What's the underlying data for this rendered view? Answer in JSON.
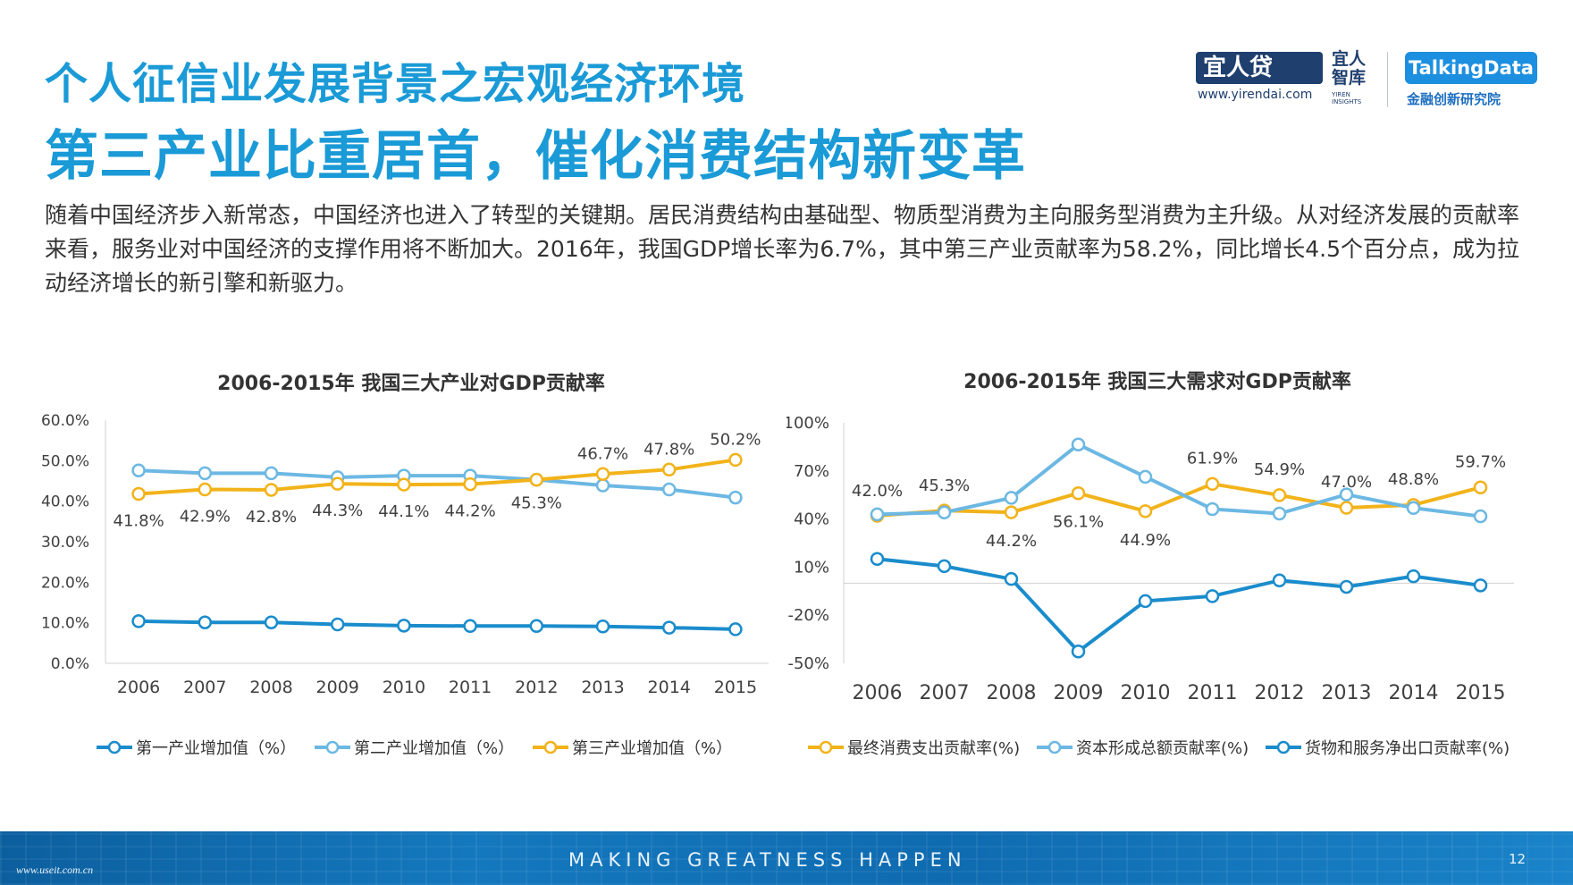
{
  "header": {
    "title": "个人征信业发展背景之宏观经济环境",
    "subtitle": "第三产业比重居首，催化消费结构新变革",
    "paragraph": "随着中国经济步入新常态，中国经济也进入了转型的关键期。居民消费结构由基础型、物质型消费为主向服务型消费为主升级。从对经济发展的贡献率来看，服务业对中国经济的支撑作用将不断加大。2016年，我国GDP增长率为6.7%，其中第三产业贡献率为58.2%，同比增长4.5个百分点，成为拉动经济增长的新引擎和新驱力。"
  },
  "logos": {
    "yirendai_name": "宜人贷",
    "yirendai_url": "www.yirendai.com",
    "zhiku_name": "宜人智库",
    "zhiku_sub": "YIREN INSIGHTS",
    "talkingdata_name": "TalkingData",
    "talkingdata_sub": "金融创新研究院"
  },
  "footer": {
    "slogan": "MAKING GREATNESS HAPPEN",
    "page_number": "12",
    "watermark": "www.useit.com.cn"
  },
  "colors": {
    "primary_blue": "#1a9ad6",
    "series_dark_blue": "#1a8ccc",
    "series_light_blue": "#6cb8e3",
    "series_gold": "#f2b31a"
  },
  "chart_data": [
    {
      "type": "line",
      "title": "2006-2015年 我国三大产业对GDP贡献率",
      "xlabel": "",
      "ylabel": "",
      "x": [
        "2006",
        "2007",
        "2008",
        "2009",
        "2010",
        "2011",
        "2012",
        "2013",
        "2014",
        "2015"
      ],
      "ylim": [
        0,
        60
      ],
      "yticks": [
        "0.0%",
        "10.0%",
        "20.0%",
        "30.0%",
        "40.0%",
        "50.0%",
        "60.0%"
      ],
      "grid": false,
      "legend_position": "bottom",
      "series": [
        {
          "name": "第一产业增加值（%）",
          "color": "#1a8ccc",
          "values": [
            10.4,
            10.1,
            10.1,
            9.6,
            9.3,
            9.2,
            9.2,
            9.1,
            8.8,
            8.4
          ]
        },
        {
          "name": "第二产业增加值（%）",
          "color": "#6cb8e3",
          "values": [
            47.6,
            46.9,
            46.9,
            45.9,
            46.3,
            46.3,
            45.3,
            43.9,
            42.9,
            40.9
          ]
        },
        {
          "name": "第三产业增加值（%）",
          "color": "#f2b31a",
          "values": [
            41.8,
            42.9,
            42.8,
            44.3,
            44.1,
            44.2,
            45.3,
            46.7,
            47.8,
            50.2
          ]
        }
      ],
      "data_labels": {
        "series": "第三产业增加值（%）",
        "text": [
          "41.8%",
          "42.9%",
          "42.8%",
          "44.3%",
          "44.1%",
          "44.2%",
          "45.3%",
          "46.7%",
          "47.8%",
          "50.2%"
        ]
      }
    },
    {
      "type": "line",
      "title": "2006-2015年 我国三大需求对GDP贡献率",
      "xlabel": "",
      "ylabel": "",
      "x": [
        "2006",
        "2007",
        "2008",
        "2009",
        "2010",
        "2011",
        "2012",
        "2013",
        "2014",
        "2015"
      ],
      "ylim": [
        -50,
        100
      ],
      "yticks": [
        "-50%",
        "-20%",
        "10%",
        "40%",
        "70%",
        "100%"
      ],
      "grid": false,
      "legend_position": "bottom",
      "series": [
        {
          "name": "最终消费支出贡献率(%)",
          "color": "#f2b31a",
          "values": [
            42.0,
            45.3,
            44.2,
            56.1,
            44.9,
            61.9,
            54.9,
            47.0,
            48.8,
            59.7
          ]
        },
        {
          "name": "资本形成总额贡献率(%)",
          "color": "#6cb8e3",
          "values": [
            42.9,
            44.1,
            53.2,
            86.5,
            66.3,
            46.2,
            43.4,
            55.3,
            46.9,
            41.7
          ]
        },
        {
          "name": "货物和服务净出口贡献率(%)",
          "color": "#1a8ccc",
          "values": [
            15.1,
            10.6,
            2.6,
            -42.6,
            -11.2,
            -8.1,
            1.7,
            -2.3,
            4.3,
            -1.4
          ]
        }
      ],
      "data_labels": {
        "series": "最终消费支出贡献率(%)",
        "text": [
          "42.0%",
          "45.3%",
          "44.2%",
          "56.1%",
          "44.9%",
          "61.9%",
          "54.9%",
          "47.0%",
          "48.8%",
          "59.7%"
        ]
      }
    }
  ]
}
